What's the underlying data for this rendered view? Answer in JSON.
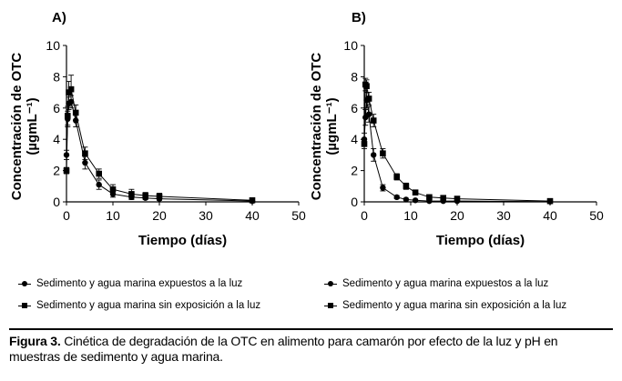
{
  "chart_data": [
    {
      "type": "line",
      "panel_label": "A)",
      "xlabel": "Tiempo (días)",
      "ylabel": "Concentración de OTC",
      "ylabel_units": "(µgmL⁻¹)",
      "xlim": [
        0,
        50
      ],
      "ylim": [
        0,
        10
      ],
      "xticks": [
        0,
        10,
        20,
        30,
        40,
        50
      ],
      "yticks": [
        0,
        2,
        4,
        6,
        8,
        10
      ],
      "series": [
        {
          "name": "Sedimento y agua marina expuestos a la luz",
          "marker": "circle",
          "x": [
            0,
            0.25,
            0.5,
            1,
            2,
            4,
            7,
            10,
            14,
            17,
            20,
            40
          ],
          "y": [
            3.0,
            5.3,
            6.3,
            6.4,
            5.2,
            2.5,
            1.1,
            0.5,
            0.3,
            0.25,
            0.2,
            0.05
          ],
          "err": [
            0.3,
            0.5,
            0.4,
            0.4,
            0.4,
            0.4,
            0.3,
            0.2,
            0.15,
            0.1,
            0.1,
            0.05
          ]
        },
        {
          "name": "Sedimento y agua marina sin exposición a la luz",
          "marker": "square",
          "x": [
            0,
            0.25,
            0.5,
            1,
            2,
            4,
            7,
            10,
            14,
            17,
            20,
            40
          ],
          "y": [
            2.0,
            5.5,
            7.0,
            7.2,
            5.7,
            3.1,
            1.8,
            0.8,
            0.5,
            0.4,
            0.35,
            0.1
          ],
          "err": [
            0.2,
            0.6,
            0.7,
            0.9,
            0.5,
            0.4,
            0.3,
            0.3,
            0.3,
            0.2,
            0.2,
            0.1
          ]
        }
      ]
    },
    {
      "type": "line",
      "panel_label": "B)",
      "xlabel": "Tiempo (días)",
      "ylabel": "Concentración de OTC",
      "ylabel_units": "(µgmL⁻¹)",
      "xlim": [
        0,
        50
      ],
      "ylim": [
        0,
        10
      ],
      "xticks": [
        0,
        10,
        20,
        30,
        40,
        50
      ],
      "yticks": [
        0,
        2,
        4,
        6,
        8,
        10
      ],
      "series": [
        {
          "name": "Sedimento y agua marina expuestos a la luz",
          "marker": "circle",
          "x": [
            0,
            0.25,
            0.5,
            1,
            2,
            4,
            7,
            9,
            11,
            14,
            17,
            20,
            40
          ],
          "y": [
            4.0,
            5.4,
            6.5,
            5.6,
            3.0,
            0.9,
            0.3,
            0.15,
            0.1,
            0.05,
            0.05,
            0.05,
            0.02
          ],
          "err": [
            0.4,
            0.5,
            0.5,
            0.5,
            0.4,
            0.2,
            0.1,
            0.05,
            0.05,
            0.05,
            0.05,
            0.05,
            0.02
          ]
        },
        {
          "name": "Sedimento y agua marina sin exposición a la luz",
          "marker": "square",
          "x": [
            0,
            0.25,
            0.5,
            1,
            2,
            4,
            7,
            9,
            11,
            14,
            17,
            20,
            40
          ],
          "y": [
            3.7,
            7.5,
            7.4,
            6.6,
            5.2,
            3.1,
            1.6,
            1.0,
            0.6,
            0.3,
            0.25,
            0.2,
            0.05
          ],
          "err": [
            0.3,
            0.4,
            0.4,
            0.4,
            0.4,
            0.3,
            0.2,
            0.2,
            0.15,
            0.1,
            0.1,
            0.1,
            0.05
          ]
        }
      ]
    }
  ],
  "legend": {
    "light": "Sedimento y agua marina expuestos a la luz",
    "dark": "Sedimento y agua marina sin exposición a la luz"
  },
  "caption": {
    "label": "Figura 3.",
    "text": " Cinética de degradación de la OTC en alimento para camarón por efecto de la luz y pH en muestras de sedimento y agua marina."
  }
}
